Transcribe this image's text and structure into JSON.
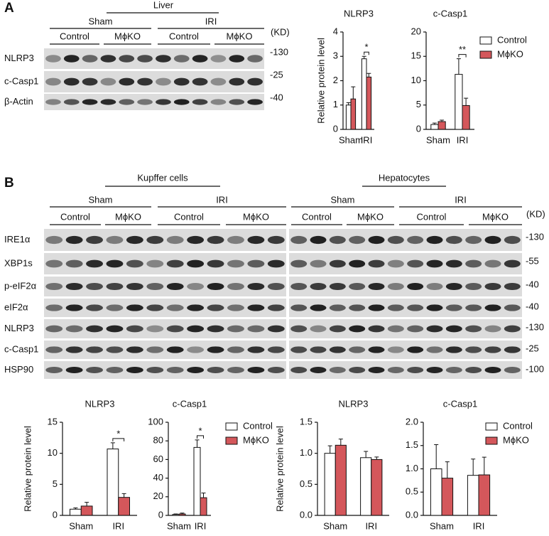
{
  "panel_a": {
    "letter": "A",
    "tissue": "Liver",
    "groups": [
      "Sham",
      "IRI"
    ],
    "subgroups": [
      "Control",
      "MϕKO",
      "Control",
      "MϕKO"
    ],
    "unit": "(KD)",
    "rows": [
      "NLRP3",
      "c-Casp1",
      "β-Actin"
    ],
    "markers": [
      "-130",
      "-25",
      "-40"
    ]
  },
  "panel_b": {
    "letter": "B",
    "cell_types": [
      "Kupffer cells",
      "Hepatocytes"
    ],
    "groups": [
      "Sham",
      "IRI",
      "Sham",
      "IRI"
    ],
    "subgroups": [
      "Control",
      "MϕKO",
      "Control",
      "MϕKO",
      "Control",
      "MϕKO",
      "Control",
      "MϕKO"
    ],
    "unit": "(KD)",
    "rows": [
      "IRE1α",
      "XBP1s",
      "p-eIF2α",
      "eIF2α",
      "NLRP3",
      "c-Casp1",
      "HSP90"
    ],
    "markers": [
      "-130",
      "-55",
      "-40",
      "-40",
      "-130",
      "-25",
      "-100"
    ]
  },
  "chart_data": [
    {
      "type": "bar",
      "title": "NLRP3",
      "ylabel": "Relative protein level",
      "categories": [
        "Sham",
        "IRI"
      ],
      "series": [
        {
          "color": "#ffffff",
          "values": [
            1.0,
            2.9
          ],
          "errors": [
            0.1,
            0.1
          ]
        },
        {
          "color": "#d4575b",
          "values": [
            1.25,
            2.15
          ],
          "errors": [
            0.5,
            0.15
          ]
        }
      ],
      "significance": [
        null,
        "*"
      ],
      "ylim": [
        0,
        4
      ],
      "yticks": [
        0,
        1,
        2,
        3,
        4
      ]
    },
    {
      "type": "bar",
      "title": "c-Casp1",
      "categories": [
        "Sham",
        "IRI"
      ],
      "series": [
        {
          "name": "Control",
          "color": "#ffffff",
          "values": [
            1.0,
            11.3
          ],
          "errors": [
            0.3,
            3.2
          ]
        },
        {
          "name": "MϕKO",
          "color": "#d4575b",
          "values": [
            1.6,
            4.9
          ],
          "errors": [
            0.3,
            1.5
          ]
        }
      ],
      "significance": [
        null,
        "**"
      ],
      "ylim": [
        0,
        20
      ],
      "yticks": [
        0,
        5,
        10,
        15,
        20
      ],
      "legend": "right"
    },
    {
      "type": "bar",
      "title": "NLRP3",
      "ylabel": "Relative protein level",
      "categories": [
        "Sham",
        "IRI"
      ],
      "series": [
        {
          "color": "#ffffff",
          "values": [
            1.0,
            10.7
          ],
          "errors": [
            0.2,
            1.0
          ]
        },
        {
          "color": "#d4575b",
          "values": [
            1.5,
            2.9
          ],
          "errors": [
            0.6,
            0.6
          ]
        }
      ],
      "significance": [
        null,
        "*"
      ],
      "ylim": [
        0,
        15
      ],
      "yticks": [
        0,
        5,
        10,
        15
      ]
    },
    {
      "type": "bar",
      "title": "c-Casp1",
      "categories": [
        "Sham",
        "IRI"
      ],
      "series": [
        {
          "name": "Control",
          "color": "#ffffff",
          "values": [
            1,
            73
          ],
          "errors": [
            0.5,
            8
          ]
        },
        {
          "name": "MϕKO",
          "color": "#d4575b",
          "values": [
            1.5,
            19
          ],
          "errors": [
            1,
            5
          ]
        }
      ],
      "significance": [
        null,
        "*"
      ],
      "ylim": [
        0,
        100
      ],
      "yticks": [
        0,
        20,
        40,
        60,
        80,
        100
      ],
      "legend": "right"
    },
    {
      "type": "bar",
      "title": "NLRP3",
      "ylabel": "Relative protein level",
      "categories": [
        "Sham",
        "IRI"
      ],
      "series": [
        {
          "color": "#ffffff",
          "values": [
            1.0,
            0.93
          ],
          "errors": [
            0.12,
            0.1
          ]
        },
        {
          "color": "#d4575b",
          "values": [
            1.13,
            0.9
          ],
          "errors": [
            0.1,
            0.04
          ]
        }
      ],
      "ylim": [
        0,
        1.5
      ],
      "yticks": [
        {
          "value": 0,
          "label": "0.0"
        },
        0.5,
        {
          "value": 1,
          "label": "1.0"
        },
        1.5
      ]
    },
    {
      "type": "bar",
      "title": "c-Casp1",
      "categories": [
        "Sham",
        "IRI"
      ],
      "series": [
        {
          "name": "Control",
          "color": "#ffffff",
          "values": [
            1.0,
            0.86
          ],
          "errors": [
            0.52,
            0.35
          ]
        },
        {
          "name": "MϕKO",
          "color": "#d4575b",
          "values": [
            0.8,
            0.87
          ],
          "errors": [
            0.35,
            0.38
          ]
        }
      ],
      "ylim": [
        0,
        2
      ],
      "yticks": [
        {
          "value": 0,
          "label": "0.0"
        },
        0.5,
        {
          "value": 1,
          "label": "1.0"
        },
        1.5,
        {
          "value": 2,
          "label": "2.0"
        }
      ],
      "legend": "right"
    }
  ]
}
